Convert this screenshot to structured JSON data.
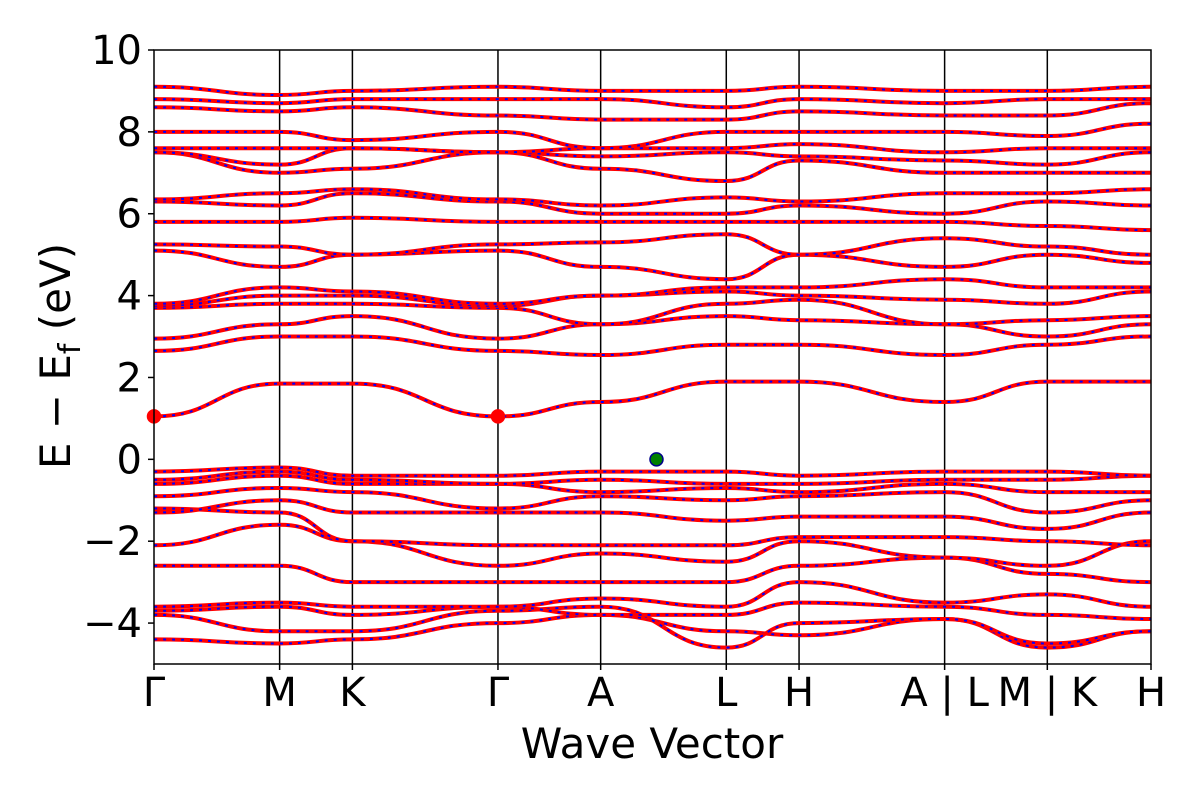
{
  "chart_data": {
    "type": "line",
    "title": "",
    "xlabel": "Wave Vector",
    "ylabel_main": "E − E",
    "ylabel_sub": "f",
    "ylabel_unit": " (eV)",
    "ylim": [
      -5,
      10
    ],
    "yticks": [
      {
        "value": -4,
        "label": "−4"
      },
      {
        "value": -2,
        "label": "−2"
      },
      {
        "value": 0,
        "label": "0"
      },
      {
        "value": 2,
        "label": "2"
      },
      {
        "value": 4,
        "label": "4"
      },
      {
        "value": 6,
        "label": "6"
      },
      {
        "value": 8,
        "label": "8"
      },
      {
        "value": 10,
        "label": "10"
      }
    ],
    "xlim": [
      0,
      1
    ],
    "kpoints": [
      {
        "x": 0.0,
        "label": "Γ"
      },
      {
        "x": 0.126,
        "label": "M"
      },
      {
        "x": 0.199,
        "label": "K"
      },
      {
        "x": 0.345,
        "label": "Γ"
      },
      {
        "x": 0.448,
        "label": "A"
      },
      {
        "x": 0.574,
        "label": "L"
      },
      {
        "x": 0.647,
        "label": "H"
      },
      {
        "x": 0.793,
        "label": "A | L"
      },
      {
        "x": 0.896,
        "label": "M | K"
      },
      {
        "x": 1.0,
        "label": "H"
      }
    ],
    "series_colors": {
      "band": "#ff0000",
      "overlay": "#0000ff"
    },
    "bands": [
      [
        -4.4,
        -4.5,
        -4.4,
        -4.0,
        -3.8,
        -4.2,
        -4.3,
        -3.9,
        -4.6,
        -4.2
      ],
      [
        -3.8,
        -4.2,
        -4.2,
        -3.7,
        -3.6,
        -4.6,
        -4.0,
        -3.9,
        -4.5,
        -4.2
      ],
      [
        -3.7,
        -3.6,
        -3.8,
        -3.6,
        -3.8,
        -3.8,
        -3.5,
        -3.6,
        -3.8,
        -3.9
      ],
      [
        -3.6,
        -3.5,
        -3.6,
        -3.6,
        -3.4,
        -3.6,
        -3.0,
        -3.5,
        -3.3,
        -3.6
      ],
      [
        -2.6,
        -2.6,
        -3.0,
        -3.0,
        -3.0,
        -3.0,
        -2.6,
        -2.4,
        -2.8,
        -3.0
      ],
      [
        -2.1,
        -1.6,
        -2.0,
        -2.6,
        -2.3,
        -2.5,
        -2.0,
        -2.4,
        -2.6,
        -2.0
      ],
      [
        -1.2,
        -1.3,
        -2.0,
        -2.1,
        -2.1,
        -2.1,
        -1.9,
        -1.9,
        -2.0,
        -2.1
      ],
      [
        -1.3,
        -1.0,
        -1.3,
        -1.3,
        -1.3,
        -1.5,
        -1.4,
        -1.4,
        -1.7,
        -1.3
      ],
      [
        -0.9,
        -0.7,
        -0.8,
        -1.2,
        -0.9,
        -1.0,
        -0.9,
        -0.8,
        -1.3,
        -1.0
      ],
      [
        -0.6,
        -0.4,
        -0.6,
        -0.6,
        -0.8,
        -0.7,
        -0.8,
        -0.6,
        -0.8,
        -0.8
      ],
      [
        -0.5,
        -0.3,
        -0.5,
        -0.6,
        -0.5,
        -0.6,
        -0.6,
        -0.5,
        -0.5,
        -0.4
      ],
      [
        -0.3,
        -0.2,
        -0.4,
        -0.4,
        -0.3,
        -0.3,
        -0.4,
        -0.3,
        -0.3,
        -0.4
      ],
      [
        1.05,
        1.85,
        1.85,
        1.05,
        1.4,
        1.9,
        1.9,
        1.4,
        1.9,
        1.9
      ],
      [
        2.65,
        3.0,
        3.0,
        2.65,
        2.55,
        2.8,
        2.8,
        2.55,
        2.8,
        3.0
      ],
      [
        2.95,
        3.3,
        3.5,
        2.95,
        3.3,
        3.5,
        3.4,
        3.3,
        3.0,
        3.3
      ],
      [
        3.7,
        3.8,
        3.8,
        3.7,
        3.3,
        3.8,
        3.9,
        3.3,
        3.4,
        3.5
      ],
      [
        3.75,
        4.0,
        4.0,
        3.75,
        4.0,
        4.1,
        4.0,
        3.9,
        3.8,
        4.1
      ],
      [
        3.8,
        4.2,
        4.1,
        3.8,
        4.0,
        4.2,
        4.2,
        4.4,
        4.2,
        4.2
      ],
      [
        5.1,
        4.7,
        5.0,
        5.1,
        4.7,
        4.4,
        5.0,
        4.7,
        5.0,
        4.8
      ],
      [
        5.25,
        5.2,
        5.0,
        5.25,
        5.3,
        5.5,
        5.0,
        5.4,
        5.2,
        5.0
      ],
      [
        5.8,
        5.8,
        5.9,
        5.8,
        5.8,
        5.8,
        5.8,
        5.8,
        5.7,
        5.6
      ],
      [
        6.3,
        6.2,
        6.5,
        6.3,
        6.0,
        6.0,
        6.2,
        6.0,
        6.3,
        6.2
      ],
      [
        6.35,
        6.5,
        6.6,
        6.35,
        6.2,
        6.4,
        6.3,
        6.5,
        6.5,
        6.6
      ],
      [
        7.5,
        7.0,
        7.1,
        7.5,
        7.1,
        6.8,
        7.3,
        7.0,
        7.0,
        7.0
      ],
      [
        7.5,
        7.2,
        7.6,
        7.5,
        7.4,
        7.5,
        7.4,
        7.3,
        7.2,
        7.5
      ],
      [
        7.6,
        7.6,
        7.6,
        7.5,
        7.6,
        7.6,
        7.7,
        7.5,
        7.6,
        7.6
      ],
      [
        8.0,
        8.0,
        7.8,
        8.0,
        7.6,
        8.0,
        8.0,
        8.0,
        7.9,
        8.2
      ],
      [
        8.6,
        8.5,
        8.6,
        8.4,
        8.3,
        8.3,
        8.5,
        8.4,
        8.4,
        8.7
      ],
      [
        8.8,
        8.7,
        8.8,
        8.8,
        8.8,
        8.6,
        8.8,
        8.7,
        8.8,
        8.8
      ],
      [
        9.1,
        8.9,
        9.0,
        9.1,
        9.0,
        9.0,
        9.1,
        9.0,
        9.0,
        9.1
      ]
    ],
    "markers": [
      {
        "x": 0.0,
        "y": 1.05,
        "color": "#ff0000"
      },
      {
        "x": 0.345,
        "y": 1.05,
        "color": "#ff0000"
      },
      {
        "x": 0.504,
        "y": 0.0,
        "color": "#008000"
      }
    ]
  }
}
